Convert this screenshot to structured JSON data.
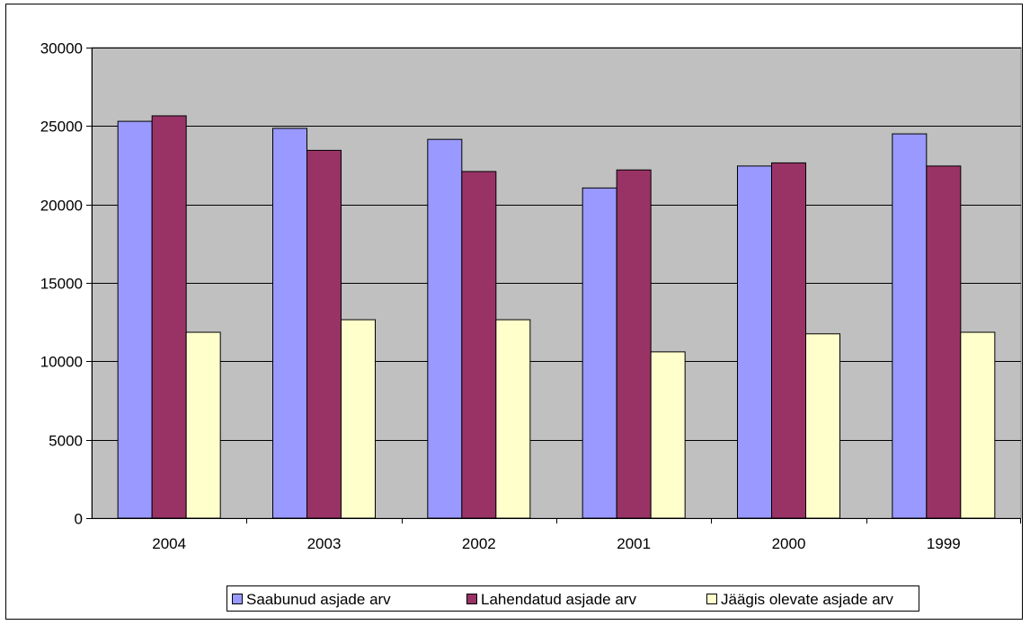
{
  "chart_data": {
    "type": "bar",
    "categories": [
      "2004",
      "2003",
      "2002",
      "2001",
      "2000",
      "1999"
    ],
    "series": [
      {
        "name": "Saabunud asjade arv",
        "color": "#9999ff",
        "values": [
          25300,
          24850,
          24150,
          21050,
          22450,
          24500
        ]
      },
      {
        "name": "Lahendatud asjade arv",
        "color": "#993366",
        "values": [
          25650,
          23450,
          22100,
          22200,
          22650,
          22450
        ]
      },
      {
        "name": "Jäägis olevate asjade arv",
        "color": "#ffffcc",
        "values": [
          11850,
          12650,
          12650,
          10600,
          11750,
          11850
        ]
      }
    ],
    "ylim": [
      0,
      30000
    ],
    "yticks": [
      "0",
      "5000",
      "10000",
      "15000",
      "20000",
      "25000",
      "30000"
    ],
    "grid": true,
    "plot_background": "#c0c0c0",
    "legend_position": "bottom",
    "title": "",
    "xlabel": "",
    "ylabel": ""
  }
}
